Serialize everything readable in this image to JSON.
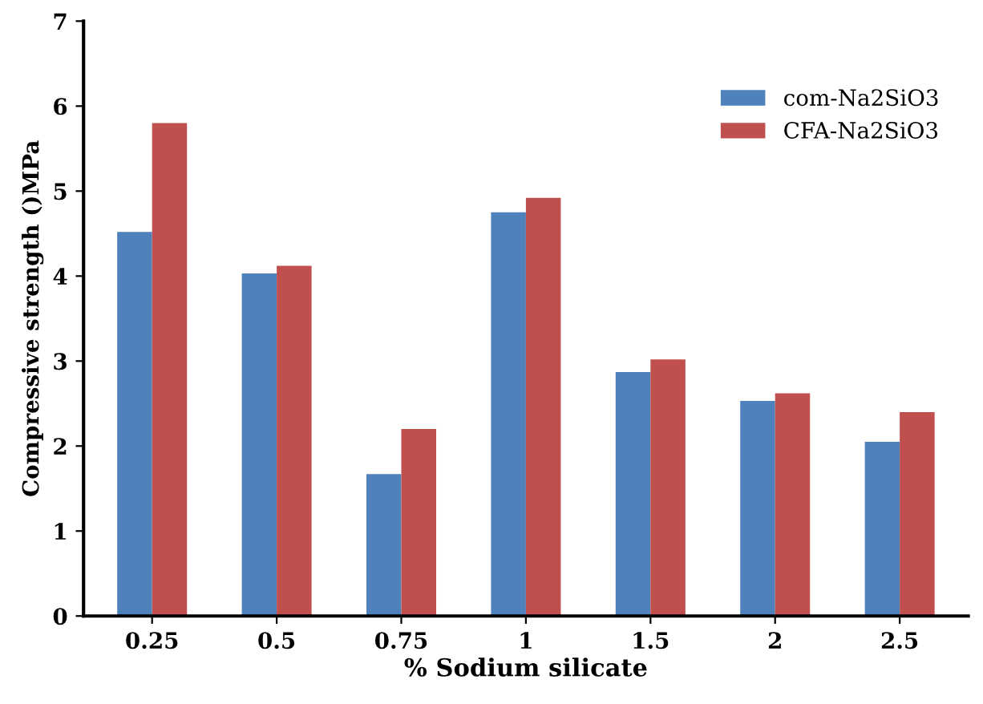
{
  "chart_data": {
    "type": "bar",
    "xlabel": "% Sodium silicate",
    "ylabel": "Compressive strength ()MPa",
    "categories": [
      "0.25",
      "0.5",
      "0.75",
      "1",
      "1.5",
      "2",
      "2.5"
    ],
    "series": [
      {
        "name": "com-Na2SiO3",
        "color": "#4f81bd",
        "values": [
          4.52,
          4.03,
          1.67,
          4.75,
          2.87,
          2.53,
          2.05
        ]
      },
      {
        "name": "CFA-Na2SiO3",
        "color": "#c0504d",
        "values": [
          5.8,
          4.12,
          2.2,
          4.92,
          3.02,
          2.62,
          2.4
        ]
      }
    ],
    "ylim": [
      0,
      7
    ],
    "yticks": [
      0,
      1,
      2,
      3,
      4,
      5,
      6,
      7
    ],
    "grid": false,
    "legend": "top right"
  }
}
